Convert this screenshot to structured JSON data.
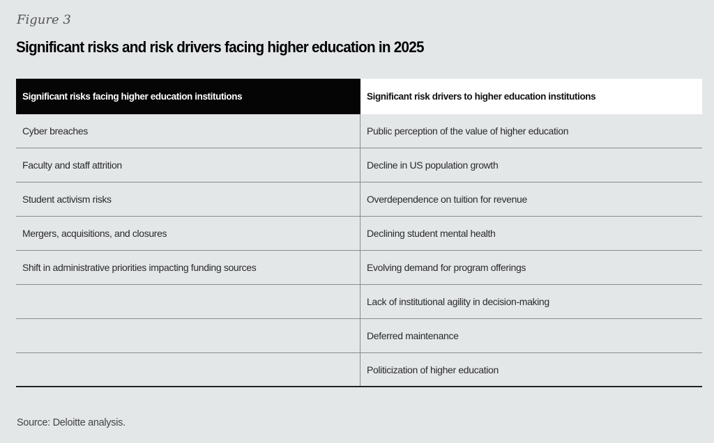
{
  "figure_label": "Figure 3",
  "title": "Significant risks and risk drivers facing higher education in 2025",
  "table": {
    "headers": [
      "Significant risks facing higher education institutions",
      "Significant risk drivers to higher education institutions"
    ],
    "rows": [
      [
        "Cyber breaches",
        "Public perception of the value of higher education"
      ],
      [
        "Faculty and staff attrition",
        "Decline in US population growth"
      ],
      [
        "Student activism risks",
        "Overdependence on tuition for revenue"
      ],
      [
        "Mergers, acquisitions, and closures",
        "Declining student mental health"
      ],
      [
        "Shift in administrative priorities impacting funding sources",
        "Evolving demand for program offerings"
      ],
      [
        "",
        "Lack of institutional agility in decision-making"
      ],
      [
        "",
        "Deferred maintenance"
      ],
      [
        "",
        "Politicization of higher education"
      ]
    ]
  },
  "source": "Source: Deloitte analysis.",
  "colors": {
    "background": "#e4e7e8",
    "header_left": "#050505",
    "header_right": "#ffffff"
  }
}
